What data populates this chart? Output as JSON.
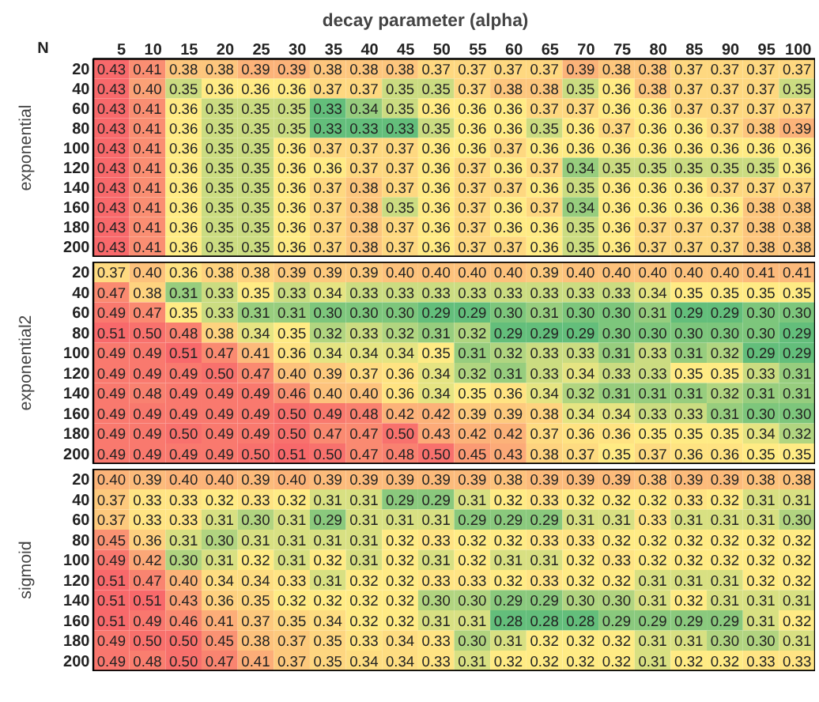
{
  "chart_data": [
    {
      "type": "heatmap",
      "title": "decay parameter (alpha)",
      "annotations": [
        "N"
      ],
      "ylabel": "exponential",
      "data_labels": true,
      "categories": [
        "5",
        "10",
        "15",
        "20",
        "25",
        "30",
        "35",
        "40",
        "45",
        "50",
        "55",
        "60",
        "65",
        "70",
        "75",
        "80",
        "85",
        "90",
        "95",
        "100"
      ],
      "y_categories": [
        "20",
        "40",
        "60",
        "80",
        "100",
        "120",
        "140",
        "160",
        "180",
        "200"
      ],
      "cells": [
        [
          0.43,
          0.41,
          0.38,
          0.38,
          0.39,
          0.39,
          0.38,
          0.38,
          0.38,
          0.37,
          0.37,
          0.37,
          0.37,
          0.39,
          0.38,
          0.38,
          0.37,
          0.37,
          0.37,
          0.37
        ],
        [
          0.43,
          0.4,
          0.35,
          0.36,
          0.36,
          0.36,
          0.37,
          0.37,
          0.35,
          0.35,
          0.37,
          0.38,
          0.38,
          0.35,
          0.36,
          0.38,
          0.37,
          0.37,
          0.37,
          0.35
        ],
        [
          0.43,
          0.41,
          0.36,
          0.35,
          0.35,
          0.35,
          0.33,
          0.34,
          0.35,
          0.36,
          0.36,
          0.36,
          0.37,
          0.37,
          0.36,
          0.36,
          0.37,
          0.37,
          0.37,
          0.37
        ],
        [
          0.43,
          0.41,
          0.36,
          0.35,
          0.35,
          0.35,
          0.33,
          0.33,
          0.33,
          0.35,
          0.36,
          0.36,
          0.35,
          0.36,
          0.37,
          0.36,
          0.36,
          0.37,
          0.38,
          0.39
        ],
        [
          0.43,
          0.41,
          0.36,
          0.35,
          0.35,
          0.36,
          0.37,
          0.37,
          0.37,
          0.36,
          0.36,
          0.37,
          0.36,
          0.36,
          0.36,
          0.36,
          0.36,
          0.36,
          0.36,
          0.36
        ],
        [
          0.43,
          0.41,
          0.36,
          0.35,
          0.35,
          0.36,
          0.36,
          0.37,
          0.37,
          0.36,
          0.37,
          0.36,
          0.37,
          0.34,
          0.35,
          0.35,
          0.35,
          0.35,
          0.35,
          0.36
        ],
        [
          0.43,
          0.41,
          0.36,
          0.35,
          0.35,
          0.36,
          0.37,
          0.38,
          0.37,
          0.36,
          0.37,
          0.37,
          0.36,
          0.35,
          0.36,
          0.36,
          0.36,
          0.37,
          0.37,
          0.37
        ],
        [
          0.43,
          0.41,
          0.36,
          0.35,
          0.35,
          0.36,
          0.37,
          0.38,
          0.35,
          0.36,
          0.37,
          0.36,
          0.37,
          0.34,
          0.36,
          0.36,
          0.36,
          0.36,
          0.38,
          0.38
        ],
        [
          0.43,
          0.41,
          0.36,
          0.35,
          0.35,
          0.36,
          0.37,
          0.38,
          0.37,
          0.36,
          0.37,
          0.36,
          0.36,
          0.35,
          0.36,
          0.37,
          0.37,
          0.37,
          0.38,
          0.38
        ],
        [
          0.43,
          0.41,
          0.36,
          0.35,
          0.35,
          0.36,
          0.37,
          0.38,
          0.37,
          0.36,
          0.37,
          0.37,
          0.36,
          0.35,
          0.36,
          0.37,
          0.37,
          0.37,
          0.38,
          0.38
        ]
      ],
      "cell_labels": [
        [
          "0.43",
          "0.41",
          "0.38",
          "0.38",
          "0.39",
          "0.39",
          "0.38",
          "0.38",
          "0.38",
          "0.37",
          "0.37",
          "0.37",
          "0.37",
          "0.39",
          "0.38",
          "0.38",
          "0.37",
          "0.37",
          "0.37",
          "0.37"
        ],
        [
          "0.43",
          "0.40",
          "0.35",
          "0.36",
          "0.36",
          "0.36",
          "0.37",
          "0.37",
          "0.35",
          "0.35",
          "0.37",
          "0.38",
          "0.38",
          "0.35",
          "0.36",
          "0.38",
          "0.37",
          "0.37",
          "0.37",
          "0.35"
        ],
        [
          "0.43",
          "0.41",
          "0.36",
          "0.35",
          "0.35",
          "0.35",
          "0.33",
          "0.34",
          "0.35",
          "0.36",
          "0.36",
          "0.36",
          "0.37",
          "0.37",
          "0.36",
          "0.36",
          "0.37",
          "0.37",
          "0.37",
          "0.37"
        ],
        [
          "0.43",
          "0.41",
          "0.36",
          "0.35",
          "0.35",
          "0.35",
          "0.33",
          "0.33",
          "0.33",
          "0.35",
          "0.36",
          "0.36",
          "0.35",
          "0.36",
          "0.37",
          "0.36",
          "0.36",
          "0.37",
          "0.38",
          "0.39"
        ],
        [
          "0.43",
          "0.41",
          "0.36",
          "0.35",
          "0.35",
          "0.36",
          "0.37",
          "0.37",
          "0.37",
          "0.36",
          "0.36",
          "0.37",
          "0.36",
          "0.36",
          "0.36",
          "0.36",
          "0.36",
          "0.36",
          "0.36",
          "0.36"
        ],
        [
          "0.43",
          "0.41",
          "0.36",
          "0.35",
          "0.35",
          "0.36",
          "0.36",
          "0.37",
          "0.37",
          "0.36",
          "0.37",
          "0.36",
          "0.37",
          "0.34",
          "0.35",
          "0.35",
          "0.35",
          "0.35",
          "0.35",
          "0.36"
        ],
        [
          "0.43",
          "0.41",
          "0.36",
          "0.35",
          "0.35",
          "0.36",
          "0.37",
          "0.38",
          "0.37",
          "0.36",
          "0.37",
          "0.37",
          "0.36",
          "0.35",
          "0.36",
          "0.36",
          "0.36",
          "0.37",
          "0.37",
          "0.37"
        ],
        [
          "0.43",
          "0.41",
          "0.36",
          "0.35",
          "0.35",
          "0.36",
          "0.37",
          "0.38",
          "0.35",
          "0.36",
          "0.37",
          "0.36",
          "0.37",
          "0.34",
          "0.36",
          "0.36",
          "0.36",
          "0.36",
          "0.38",
          "0.38"
        ],
        [
          "0.43",
          "0.41",
          "0.36",
          "0.35",
          "0.35",
          "0.36",
          "0.37",
          "0.38",
          "0.37",
          "0.36",
          "0.37",
          "0.36",
          "0.36",
          "0.35",
          "0.36",
          "0.37",
          "0.37",
          "0.37",
          "0.38",
          "0.38"
        ],
        [
          "0.43",
          "0.41",
          "0.36",
          "0.35",
          "0.35",
          "0.36",
          "0.37",
          "0.38",
          "0.37",
          "0.36",
          "0.37",
          "0.37",
          "0.36",
          "0.35",
          "0.36",
          "0.37",
          "0.37",
          "0.37",
          "0.38",
          "0.38"
        ]
      ]
    },
    {
      "type": "heatmap",
      "ylabel": "exponential2",
      "tick_labels": "y",
      "data_labels": true,
      "categories": [
        "5",
        "10",
        "15",
        "20",
        "25",
        "30",
        "35",
        "40",
        "45",
        "50",
        "55",
        "60",
        "65",
        "70",
        "75",
        "80",
        "85",
        "90",
        "95",
        "100"
      ],
      "y_categories": [
        "20",
        "40",
        "60",
        "80",
        "100",
        "120",
        "140",
        "160",
        "180",
        "200"
      ],
      "cells": [
        [
          0.37,
          0.4,
          0.36,
          0.38,
          0.38,
          0.39,
          0.39,
          0.39,
          0.4,
          0.4,
          0.4,
          0.4,
          0.39,
          0.4,
          0.4,
          0.4,
          0.4,
          0.4,
          0.41,
          0.41
        ],
        [
          0.47,
          0.38,
          0.31,
          0.33,
          0.35,
          0.33,
          0.34,
          0.33,
          0.33,
          0.33,
          0.33,
          0.33,
          0.33,
          0.33,
          0.33,
          0.34,
          0.35,
          0.35,
          0.35,
          0.35
        ],
        [
          0.49,
          0.47,
          0.35,
          0.33,
          0.31,
          0.31,
          0.3,
          0.3,
          0.3,
          0.29,
          0.29,
          0.3,
          0.31,
          0.3,
          0.3,
          0.31,
          0.29,
          0.29,
          0.3,
          0.3
        ],
        [
          0.51,
          0.5,
          0.48,
          0.38,
          0.34,
          0.35,
          0.32,
          0.33,
          0.32,
          0.31,
          0.32,
          0.29,
          0.29,
          0.29,
          0.3,
          0.3,
          0.3,
          0.3,
          0.3,
          0.29
        ],
        [
          0.49,
          0.49,
          0.51,
          0.47,
          0.41,
          0.36,
          0.34,
          0.34,
          0.34,
          0.35,
          0.31,
          0.32,
          0.33,
          0.33,
          0.31,
          0.33,
          0.31,
          0.32,
          0.29,
          0.29
        ],
        [
          0.49,
          0.49,
          0.49,
          0.5,
          0.47,
          0.4,
          0.39,
          0.37,
          0.36,
          0.34,
          0.32,
          0.31,
          0.33,
          0.34,
          0.33,
          0.33,
          0.35,
          0.35,
          0.33,
          0.31
        ],
        [
          0.49,
          0.48,
          0.49,
          0.49,
          0.49,
          0.46,
          0.4,
          0.4,
          0.36,
          0.34,
          0.35,
          0.36,
          0.34,
          0.32,
          0.31,
          0.31,
          0.31,
          0.32,
          0.31,
          0.31
        ],
        [
          0.49,
          0.49,
          0.49,
          0.49,
          0.49,
          0.5,
          0.49,
          0.48,
          0.42,
          0.42,
          0.39,
          0.39,
          0.38,
          0.34,
          0.34,
          0.33,
          0.33,
          0.31,
          0.3,
          0.3
        ],
        [
          0.49,
          0.49,
          0.5,
          0.49,
          0.49,
          0.5,
          0.47,
          0.47,
          0.5,
          0.43,
          0.42,
          0.42,
          0.37,
          0.36,
          0.36,
          0.35,
          0.35,
          0.35,
          0.34,
          0.32
        ],
        [
          0.49,
          0.49,
          0.49,
          0.49,
          0.5,
          0.51,
          0.5,
          0.47,
          0.48,
          0.5,
          0.45,
          0.43,
          0.38,
          0.37,
          0.35,
          0.37,
          0.36,
          0.36,
          0.35,
          0.35
        ]
      ],
      "cell_labels": [
        [
          "0.37",
          "0.40",
          "0.36",
          "0.38",
          "0.38",
          "0.39",
          "0.39",
          "0.39",
          "0.40",
          "0.40",
          "0.40",
          "0.40",
          "0.39",
          "0.40",
          "0.40",
          "0.40",
          "0.40",
          "0.40",
          "0.41",
          "0.41"
        ],
        [
          "0.47",
          "0.38",
          "0.31",
          "0.33",
          "0.35",
          "0.33",
          "0.34",
          "0.33",
          "0.33",
          "0.33",
          "0.33",
          "0.33",
          "0.33",
          "0.33",
          "0.33",
          "0.34",
          "0.35",
          "0.35",
          "0.35",
          "0.35"
        ],
        [
          "0.49",
          "0.47",
          "0.35",
          "0.33",
          "0.31",
          "0.31",
          "0.30",
          "0.30",
          "0.30",
          "0.29",
          "0.29",
          "0.30",
          "0.31",
          "0.30",
          "0.30",
          "0.31",
          "0.29",
          "0.29",
          "0.30",
          "0.30"
        ],
        [
          "0.51",
          "0.50",
          "0.48",
          "0.38",
          "0.34",
          "0.35",
          "0.32",
          "0.33",
          "0.32",
          "0.31",
          "0.32",
          "0.29",
          "0.29",
          "0.29",
          "0.30",
          "0.30",
          "0.30",
          "0.30",
          "0.30",
          "0.29"
        ],
        [
          "0.49",
          "0.49",
          "0.51",
          "0.47",
          "0.41",
          "0.36",
          "0.34",
          "0.34",
          "0.34",
          "0.35",
          "0.31",
          "0.32",
          "0.33",
          "0.33",
          "0.31",
          "0.33",
          "0.31",
          "0.32",
          "0.29",
          "0.29"
        ],
        [
          "0.49",
          "0.49",
          "0.49",
          "0.50",
          "0.47",
          "0.40",
          "0.39",
          "0.37",
          "0.36",
          "0.34",
          "0.32",
          "0.31",
          "0.33",
          "0.34",
          "0.33",
          "0.33",
          "0.35",
          "0.35",
          "0.33",
          "0.31"
        ],
        [
          "0.49",
          "0.48",
          "0.49",
          "0.49",
          "0.49",
          "0.46",
          "0.40",
          "0.40",
          "0.36",
          "0.34",
          "0.35",
          "0.36",
          "0.34",
          "0.32",
          "0.31",
          "0.31",
          "0.31",
          "0.32",
          "0.31",
          "0.31"
        ],
        [
          "0.49",
          "0.49",
          "0.49",
          "0.49",
          "0.49",
          "0.50",
          "0.49",
          "0.48",
          "0.42",
          "0.42",
          "0.39",
          "0.39",
          "0.38",
          "0.34",
          "0.34",
          "0.33",
          "0.33",
          "0.31",
          "0.30",
          "0.30"
        ],
        [
          "0.49",
          "0.49",
          "0.50",
          "0.49",
          "0.49",
          "0.50",
          "0.47",
          "0.47",
          "0.50",
          "0.43",
          "0.42",
          "0.42",
          "0.37",
          "0.36",
          "0.36",
          "0.35",
          "0.35",
          "0.35",
          "0.34",
          "0.32"
        ],
        [
          "0.49",
          "0.49",
          "0.49",
          "0.49",
          "0.50",
          "0.51",
          "0.50",
          "0.47",
          "0.48",
          "0.50",
          "0.45",
          "0.43",
          "0.38",
          "0.37",
          "0.35",
          "0.37",
          "0.36",
          "0.36",
          "0.35",
          "0.35"
        ]
      ]
    },
    {
      "type": "heatmap",
      "ylabel": "sigmoid",
      "tick_labels": "y",
      "data_labels": true,
      "categories": [
        "5",
        "10",
        "15",
        "20",
        "25",
        "30",
        "35",
        "40",
        "45",
        "50",
        "55",
        "60",
        "65",
        "70",
        "75",
        "80",
        "85",
        "90",
        "95",
        "100"
      ],
      "y_categories": [
        "20",
        "40",
        "60",
        "80",
        "100",
        "120",
        "140",
        "160",
        "180",
        "200"
      ],
      "cells": [
        [
          0.4,
          0.39,
          0.4,
          0.4,
          0.39,
          0.4,
          0.39,
          0.39,
          0.39,
          0.39,
          0.39,
          0.38,
          0.39,
          0.39,
          0.39,
          0.38,
          0.39,
          0.39,
          0.38,
          0.38
        ],
        [
          0.37,
          0.33,
          0.33,
          0.32,
          0.33,
          0.32,
          0.31,
          0.31,
          0.29,
          0.29,
          0.31,
          0.32,
          0.33,
          0.32,
          0.32,
          0.32,
          0.33,
          0.32,
          0.31,
          0.31
        ],
        [
          0.37,
          0.33,
          0.33,
          0.31,
          0.3,
          0.31,
          0.29,
          0.31,
          0.31,
          0.31,
          0.29,
          0.29,
          0.29,
          0.31,
          0.31,
          0.33,
          0.31,
          0.31,
          0.31,
          0.3
        ],
        [
          0.45,
          0.36,
          0.31,
          0.3,
          0.31,
          0.31,
          0.31,
          0.31,
          0.32,
          0.33,
          0.32,
          0.32,
          0.33,
          0.33,
          0.32,
          0.32,
          0.32,
          0.32,
          0.32,
          0.32
        ],
        [
          0.49,
          0.42,
          0.3,
          0.31,
          0.32,
          0.31,
          0.32,
          0.31,
          0.32,
          0.31,
          0.32,
          0.31,
          0.31,
          0.32,
          0.33,
          0.32,
          0.32,
          0.32,
          0.32,
          0.32
        ],
        [
          0.51,
          0.47,
          0.4,
          0.34,
          0.34,
          0.33,
          0.31,
          0.32,
          0.32,
          0.33,
          0.33,
          0.32,
          0.33,
          0.32,
          0.32,
          0.31,
          0.31,
          0.31,
          0.32,
          0.32
        ],
        [
          0.51,
          0.51,
          0.43,
          0.36,
          0.35,
          0.32,
          0.32,
          0.32,
          0.32,
          0.3,
          0.3,
          0.29,
          0.29,
          0.3,
          0.3,
          0.31,
          0.32,
          0.31,
          0.31,
          0.31
        ],
        [
          0.51,
          0.49,
          0.46,
          0.41,
          0.37,
          0.35,
          0.34,
          0.32,
          0.32,
          0.31,
          0.31,
          0.28,
          0.28,
          0.28,
          0.29,
          0.29,
          0.29,
          0.29,
          0.31,
          0.32
        ],
        [
          0.49,
          0.5,
          0.5,
          0.45,
          0.38,
          0.37,
          0.35,
          0.33,
          0.34,
          0.33,
          0.3,
          0.31,
          0.32,
          0.32,
          0.32,
          0.31,
          0.31,
          0.3,
          0.3,
          0.31
        ],
        [
          0.49,
          0.48,
          0.5,
          0.47,
          0.41,
          0.37,
          0.35,
          0.34,
          0.34,
          0.33,
          0.31,
          0.32,
          0.32,
          0.32,
          0.32,
          0.31,
          0.32,
          0.32,
          0.33,
          0.33
        ]
      ],
      "cell_labels": [
        [
          "0.40",
          "0.39",
          "0.40",
          "0.40",
          "0.39",
          "0.40",
          "0.39",
          "0.39",
          "0.39",
          "0.39",
          "0.39",
          "0.38",
          "0.39",
          "0.39",
          "0.39",
          "0.38",
          "0.39",
          "0.39",
          "0.38",
          "0.38"
        ],
        [
          "0.37",
          "0.33",
          "0.33",
          "0.32",
          "0.33",
          "0.32",
          "0.31",
          "0.31",
          "0.29",
          "0.29",
          "0.31",
          "0.32",
          "0.33",
          "0.32",
          "0.32",
          "0.32",
          "0.33",
          "0.32",
          "0.31",
          "0.31"
        ],
        [
          "0.37",
          "0.33",
          "0.33",
          "0.31",
          "0.30",
          "0.31",
          "0.29",
          "0.31",
          "0.31",
          "0.31",
          "0.29",
          "0.29",
          "0.29",
          "0.31",
          "0.31",
          "0.33",
          "0.31",
          "0.31",
          "0.31",
          "0.30"
        ],
        [
          "0.45",
          "0.36",
          "0.31",
          "0.30",
          "0.31",
          "0.31",
          "0.31",
          "0.31",
          "0.32",
          "0.33",
          "0.32",
          "0.32",
          "0.33",
          "0.33",
          "0.32",
          "0.32",
          "0.32",
          "0.32",
          "0.32",
          "0.32"
        ],
        [
          "0.49",
          "0.42",
          "0.30",
          "0.31",
          "0.32",
          "0.31",
          "0.32",
          "0.31",
          "0.32",
          "0.31",
          "0.32",
          "0.31",
          "0.31",
          "0.32",
          "0.33",
          "0.32",
          "0.32",
          "0.32",
          "0.32",
          "0.32"
        ],
        [
          "0.51",
          "0.47",
          "0.40",
          "0.34",
          "0.34",
          "0.33",
          "0.31",
          "0.32",
          "0.32",
          "0.33",
          "0.33",
          "0.32",
          "0.33",
          "0.32",
          "0.32",
          "0.31",
          "0.31",
          "0.31",
          "0.32",
          "0.32"
        ],
        [
          "0.51",
          "0.51",
          "0.43",
          "0.36",
          "0.35",
          "0.32",
          "0.32",
          "0.32",
          "0.32",
          "0.30",
          "0.30",
          "0.29",
          "0.29",
          "0.30",
          "0.30",
          "0.31",
          "0.32",
          "0.31",
          "0.31",
          "0.31"
        ],
        [
          "0.51",
          "0.49",
          "0.46",
          "0.41",
          "0.37",
          "0.35",
          "0.34",
          "0.32",
          "0.32",
          "0.31",
          "0.31",
          "0.28",
          "0.28",
          "0.28",
          "0.29",
          "0.29",
          "0.29",
          "0.29",
          "0.31",
          "0.32"
        ],
        [
          "0.49",
          "0.50",
          "0.50",
          "0.45",
          "0.38",
          "0.37",
          "0.35",
          "0.33",
          "0.34",
          "0.33",
          "0.30",
          "0.31",
          "0.32",
          "0.32",
          "0.32",
          "0.31",
          "0.31",
          "0.30",
          "0.30",
          "0.31"
        ],
        [
          "0.49",
          "0.48",
          "0.50",
          "0.47",
          "0.41",
          "0.37",
          "0.35",
          "0.34",
          "0.34",
          "0.33",
          "0.31",
          "0.32",
          "0.32",
          "0.32",
          "0.32",
          "0.31",
          "0.32",
          "0.32",
          "0.33",
          "0.33"
        ]
      ]
    }
  ]
}
